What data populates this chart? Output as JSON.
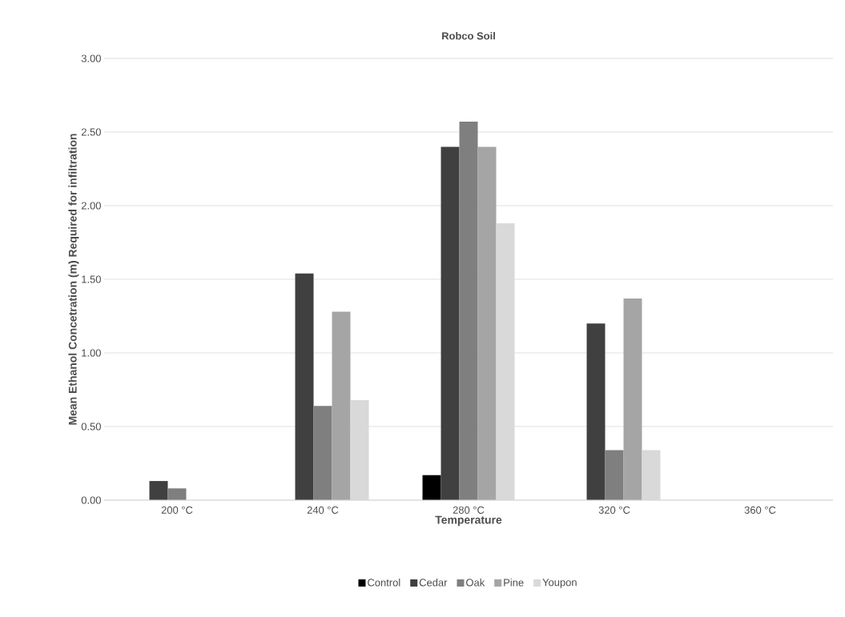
{
  "chart_data": {
    "type": "bar",
    "title": "Robco Soil",
    "xlabel": "Temperature",
    "ylabel": "Mean Ethanol Concetration (m) Required for infiltration",
    "categories": [
      "200 °C",
      "240 °C",
      "280 °C",
      "320 °C",
      "360 °C"
    ],
    "series": [
      {
        "name": "Control",
        "color": "#000000",
        "values": [
          0,
          0,
          0.17,
          0,
          0
        ]
      },
      {
        "name": "Cedar",
        "color": "#404040",
        "values": [
          0.13,
          1.54,
          2.4,
          1.2,
          0
        ]
      },
      {
        "name": "Oak",
        "color": "#7f7f7f",
        "values": [
          0.08,
          0.64,
          2.57,
          0.34,
          0
        ]
      },
      {
        "name": "Pine",
        "color": "#a5a5a5",
        "values": [
          0,
          1.28,
          2.4,
          1.37,
          0
        ]
      },
      {
        "name": "Youpon",
        "color": "#d9d9d9",
        "values": [
          0,
          0.68,
          1.88,
          0.34,
          0
        ]
      }
    ],
    "ylim": [
      0,
      3
    ],
    "yticks": [
      {
        "value": 0,
        "label": "0.00"
      },
      {
        "value": 0.5,
        "label": "0.50"
      },
      {
        "value": 1,
        "label": "1.00"
      },
      {
        "value": 1.5,
        "label": "1.50"
      },
      {
        "value": 2,
        "label": "2.00"
      },
      {
        "value": 2.5,
        "label": "2.50"
      },
      {
        "value": 3,
        "label": "3.00"
      }
    ],
    "grid": "y",
    "legend": "bottom"
  }
}
